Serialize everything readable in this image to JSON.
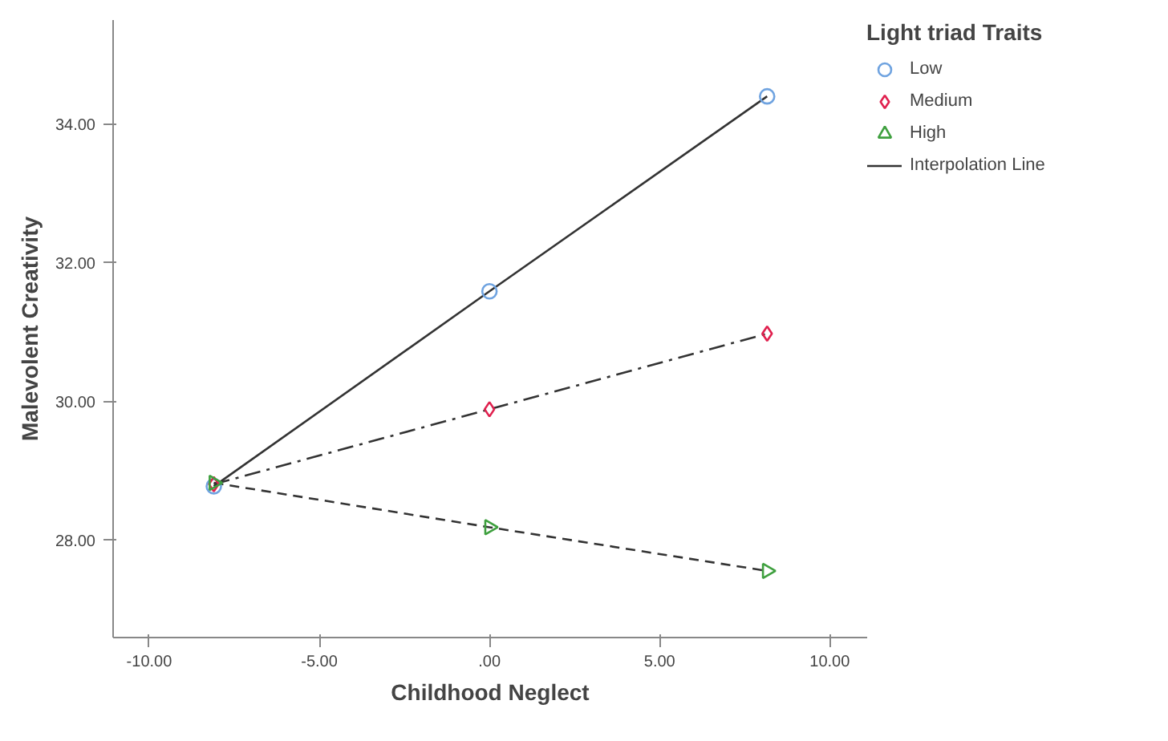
{
  "chart_data": {
    "type": "line",
    "xlabel": "Childhood Neglect",
    "ylabel": "Malevolent Creativity",
    "legend_title": "Light triad Traits",
    "legend": "top right",
    "grid": false,
    "xlim": [
      -11.06,
      11.1
    ],
    "ylim": [
      26.6,
      35.5
    ],
    "xticks": [
      {
        "value": -10,
        "label": "-10.00"
      },
      {
        "value": -5,
        "label": "-5.00"
      },
      {
        "value": 0,
        "label": ".00"
      },
      {
        "value": 5,
        "label": "5.00"
      },
      {
        "value": 10,
        "label": "10.00"
      }
    ],
    "yticks": [
      {
        "value": 28,
        "label": "28.00"
      },
      {
        "value": 30,
        "label": "30.00"
      },
      {
        "value": 32,
        "label": "32.00"
      },
      {
        "value": 34,
        "label": "34.00"
      }
    ],
    "series": [
      {
        "type": "scatter",
        "name": "Low",
        "color": "#6fa3e0",
        "marker": "circle",
        "x": [
          -8.1,
          0,
          8.16
        ],
        "values": [
          28.78,
          31.59,
          34.4
        ]
      },
      {
        "type": "scatter",
        "name": "Medium",
        "color": "#e0204e",
        "marker": "diamond",
        "x": [
          -8.1,
          0,
          8.16
        ],
        "values": [
          28.81,
          29.89,
          30.98
        ]
      },
      {
        "type": "scatter",
        "name": "High",
        "color": "#3fa03f",
        "marker": "triangle",
        "x": [
          -8.1,
          0,
          8.16
        ],
        "values": [
          28.83,
          28.19,
          27.56
        ]
      },
      {
        "name": "Interpolation Line",
        "color": "#333333",
        "line_style": "solid",
        "x": [
          -8.1,
          0,
          8.16
        ],
        "values": [
          28.78,
          31.59,
          34.4
        ]
      },
      {
        "color": "#333333",
        "line_style": "dashdot",
        "x": [
          -8.1,
          0,
          8.16
        ],
        "values": [
          28.81,
          29.89,
          30.98
        ]
      },
      {
        "color": "#333333",
        "line_style": "dashed",
        "x": [
          -8.1,
          0,
          8.16
        ],
        "values": [
          28.83,
          28.19,
          27.56
        ]
      }
    ]
  }
}
